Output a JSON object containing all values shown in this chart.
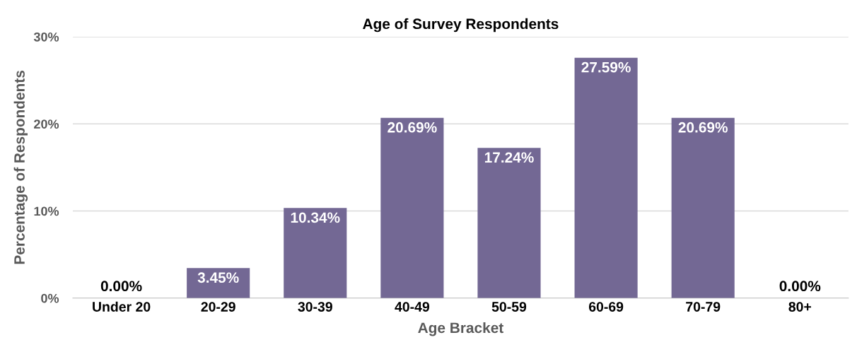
{
  "chart_data": {
    "type": "bar",
    "title": "Age of Survey Respondents",
    "xlabel": "Age Bracket",
    "ylabel": "Percentage of Respondents",
    "categories": [
      "Under 20",
      "20-29",
      "30-39",
      "40-49",
      "50-59",
      "60-69",
      "70-79",
      "80+"
    ],
    "values": [
      0,
      3.45,
      10.34,
      20.69,
      17.24,
      27.59,
      20.69,
      0
    ],
    "value_labels": [
      "0.00%",
      "3.45%",
      "10.34%",
      "20.69%",
      "17.24%",
      "27.59%",
      "20.69%",
      "0.00%"
    ],
    "color": "#736894",
    "ylim": [
      0,
      30
    ],
    "yticks": [
      {
        "value": 0,
        "label": "0%"
      },
      {
        "value": 10,
        "label": "10%"
      },
      {
        "value": 20,
        "label": "20%"
      },
      {
        "value": 30,
        "label": "30%"
      }
    ],
    "grid": "y"
  }
}
